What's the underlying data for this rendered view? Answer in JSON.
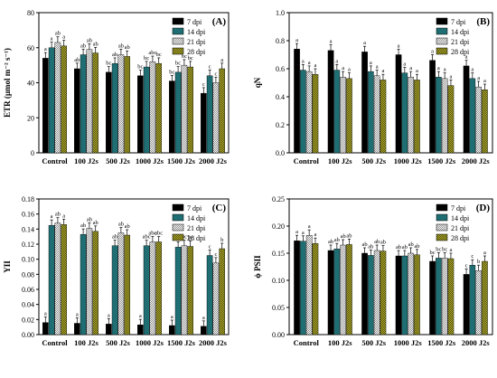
{
  "legend_entries": [
    "7 dpi",
    "14 dpi",
    "21 dpi",
    "28 dpi"
  ],
  "series_colors": [
    "#000000",
    "#1f6e73",
    "#b8b8b8",
    "#7d7a1c"
  ],
  "series_patterns": [
    "solid",
    "solid",
    "checker",
    "checker"
  ],
  "chart_data": [
    {
      "type": "bar",
      "panel_label": "(A)",
      "ylabel": "ETR (µmol m⁻² s⁻¹)",
      "categories": [
        "Control",
        "100 J2s",
        "500 J2s",
        "1000 J2s",
        "1500 J2s",
        "2000 J2s"
      ],
      "ylim": [
        0,
        80
      ],
      "yticks": [
        "0",
        "20",
        "40",
        "60",
        "80"
      ],
      "series": [
        {
          "values": [
            54,
            48,
            46,
            44,
            41,
            34
          ]
        },
        {
          "values": [
            60,
            56,
            51,
            49,
            46,
            44
          ]
        },
        {
          "values": [
            63,
            59,
            56,
            52,
            50,
            40
          ]
        },
        {
          "values": [
            61,
            57,
            55,
            51,
            49,
            48
          ]
        }
      ],
      "annotations": [
        [
          "a",
          "ab",
          "bc",
          "bc",
          "bc",
          "c"
        ],
        [
          "a",
          "ab",
          "ab",
          "bc",
          "bc",
          "c"
        ],
        [
          "ab",
          "ab",
          "ab",
          "abc",
          "bc",
          "c"
        ],
        [
          "a",
          "ab",
          "ab",
          "bc",
          "bc",
          "a"
        ]
      ],
      "legend_position": "top-right"
    },
    {
      "type": "bar",
      "panel_label": "(B)",
      "ylabel": "qN",
      "categories": [
        "Control",
        "100 J2s",
        "500 J2s",
        "1000 J2s",
        "1500 J2s",
        "2000 J2s"
      ],
      "ylim": [
        0,
        1.0
      ],
      "yticks": [
        "0.0",
        "0.2",
        "0.4",
        "0.6",
        "0.8",
        "1.0"
      ],
      "series": [
        {
          "values": [
            0.74,
            0.73,
            0.72,
            0.7,
            0.66,
            0.62
          ]
        },
        {
          "values": [
            0.59,
            0.59,
            0.58,
            0.57,
            0.54,
            0.53
          ]
        },
        {
          "values": [
            0.58,
            0.54,
            0.55,
            0.54,
            0.53,
            0.47
          ]
        },
        {
          "values": [
            0.56,
            0.53,
            0.52,
            0.52,
            0.48,
            0.45
          ]
        }
      ],
      "annotations": [
        [
          "a",
          "a",
          "a",
          "a",
          "a",
          "a"
        ],
        [
          "a",
          "a",
          "a",
          "a",
          "a",
          "a"
        ],
        [
          "a",
          "a",
          "a",
          "a",
          "a",
          "a"
        ],
        [
          "a",
          "a",
          "a",
          "a",
          "a",
          "a"
        ]
      ],
      "legend_position": "top-right"
    },
    {
      "type": "bar",
      "panel_label": "(C)",
      "ylabel": "YII",
      "categories": [
        "Control",
        "100 J2s",
        "500 J2s",
        "1000 J2s",
        "1500 J2s",
        "2000 J2s"
      ],
      "ylim": [
        0,
        0.18
      ],
      "yticks": [
        "0.00",
        "0.02",
        "0.04",
        "0.06",
        "0.08",
        "0.10",
        "0.12",
        "0.14",
        "0.16",
        "0.18"
      ],
      "series": [
        {
          "values": [
            0.016,
            0.015,
            0.014,
            0.013,
            0.012,
            0.011
          ]
        },
        {
          "values": [
            0.145,
            0.133,
            0.118,
            0.118,
            0.116,
            0.105
          ]
        },
        {
          "values": [
            0.148,
            0.141,
            0.135,
            0.123,
            0.118,
            0.095
          ]
        },
        {
          "values": [
            0.146,
            0.137,
            0.132,
            0.123,
            0.117,
            0.114
          ]
        }
      ],
      "annotations": [
        [
          "a",
          "a",
          "a",
          "a",
          "a",
          "a"
        ],
        [
          "a",
          "ab",
          "ab",
          "abc",
          "bc",
          "c"
        ],
        [
          "ab",
          "ab",
          "ab",
          "abc",
          "bc",
          "c"
        ],
        [
          "a",
          "ab",
          "ab",
          "abc",
          "bc",
          "b"
        ]
      ],
      "legend_position": "top-right"
    },
    {
      "type": "bar",
      "panel_label": "(D)",
      "ylabel": "ϕ PSII",
      "categories": [
        "Control",
        "100 J2s",
        "500 J2s",
        "1000 J2s",
        "1500 J2s",
        "2000 J2s"
      ],
      "ylim": [
        0,
        0.25
      ],
      "yticks": [
        "0.00",
        "0.05",
        "0.10",
        "0.15",
        "0.20",
        "0.25"
      ],
      "series": [
        {
          "values": [
            0.173,
            0.155,
            0.15,
            0.145,
            0.135,
            0.111
          ]
        },
        {
          "values": [
            0.172,
            0.158,
            0.146,
            0.145,
            0.141,
            0.128
          ]
        },
        {
          "values": [
            0.183,
            0.165,
            0.155,
            0.15,
            0.141,
            0.118
          ]
        },
        {
          "values": [
            0.168,
            0.166,
            0.154,
            0.147,
            0.14,
            0.135
          ]
        }
      ],
      "annotations": [
        [
          "a",
          "ab",
          "ab",
          "ab",
          "bc",
          "c"
        ],
        [
          "a",
          "ab",
          "ab",
          "ab",
          "bc",
          "c"
        ],
        [
          "a",
          "ab",
          "ab",
          "ab",
          "bc",
          "b"
        ],
        [
          "a",
          "ab",
          "ab",
          "ab",
          "a",
          "a"
        ]
      ],
      "legend_position": "top-right"
    }
  ]
}
